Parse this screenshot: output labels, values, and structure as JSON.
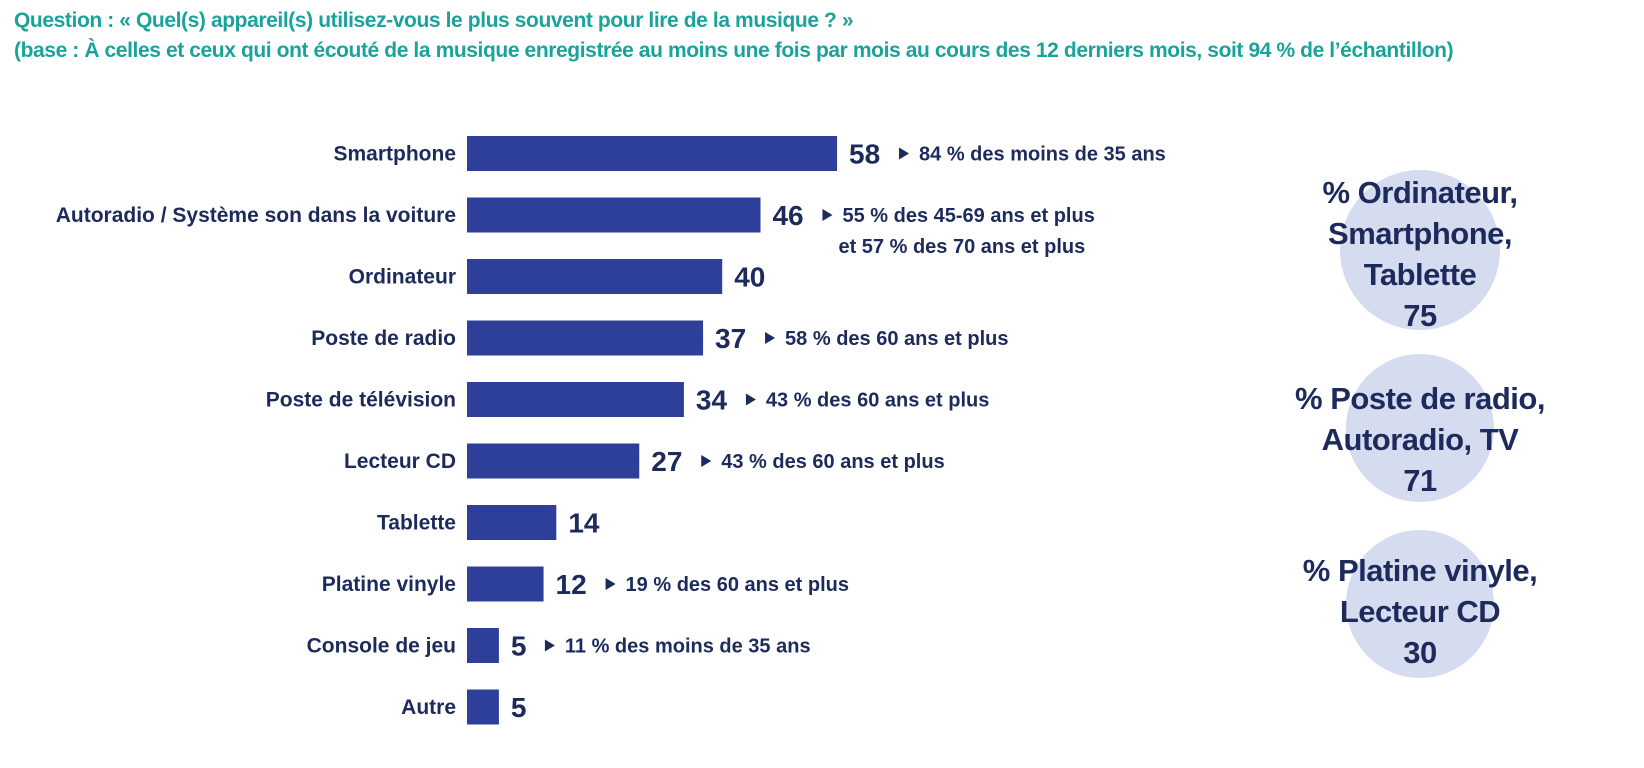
{
  "header": {
    "question": "Question : « Quel(s) appareil(s) utilisez-vous le plus souvent pour lire de la musique ? »",
    "base": "(base : À celles et ceux qui ont écouté de la musique enregistrée au moins une fois par mois au cours des 12 derniers mois, soit 94 % de l’échantillon)"
  },
  "colors": {
    "bar": "#2e3f9a",
    "text": "#1d2a5c",
    "header": "#1aa39a",
    "bubble": "#d5dcf0"
  },
  "chart_data": {
    "type": "bar",
    "orientation": "horizontal",
    "categories": [
      "Smartphone",
      "Autoradio / Système son dans la voiture",
      "Ordinateur",
      "Poste de radio",
      "Poste de télévision",
      "Lecteur CD",
      "Tablette",
      "Platine vinyle",
      "Console de jeu",
      "Autre"
    ],
    "values": [
      58,
      46,
      40,
      37,
      34,
      27,
      14,
      12,
      5,
      5
    ],
    "value_labels": [
      "58",
      "46",
      "40",
      "37",
      "34",
      "27",
      "14",
      "12",
      "5",
      "5"
    ],
    "annotations": [
      [
        "84 % des moins de 35 ans"
      ],
      [
        "55 % des 45-69 ans et plus",
        "et 57 % des 70 ans et plus"
      ],
      [],
      [
        "58 % des 60 ans et plus"
      ],
      [
        "43 % des 60 ans et plus"
      ],
      [
        "43 % des 60 ans et plus"
      ],
      [],
      [
        "19 % des 60 ans et plus"
      ],
      [
        "11 % des moins de 35 ans"
      ],
      []
    ],
    "grid": false,
    "legend": "none"
  },
  "summaries": [
    {
      "lines": [
        "% Ordinateur,",
        "Smartphone,",
        "Tablette"
      ],
      "value": "75"
    },
    {
      "lines": [
        "% Poste de radio,",
        "Autoradio, TV"
      ],
      "value": "71"
    },
    {
      "lines": [
        "% Platine vinyle,",
        "Lecteur CD"
      ],
      "value": "30"
    }
  ]
}
